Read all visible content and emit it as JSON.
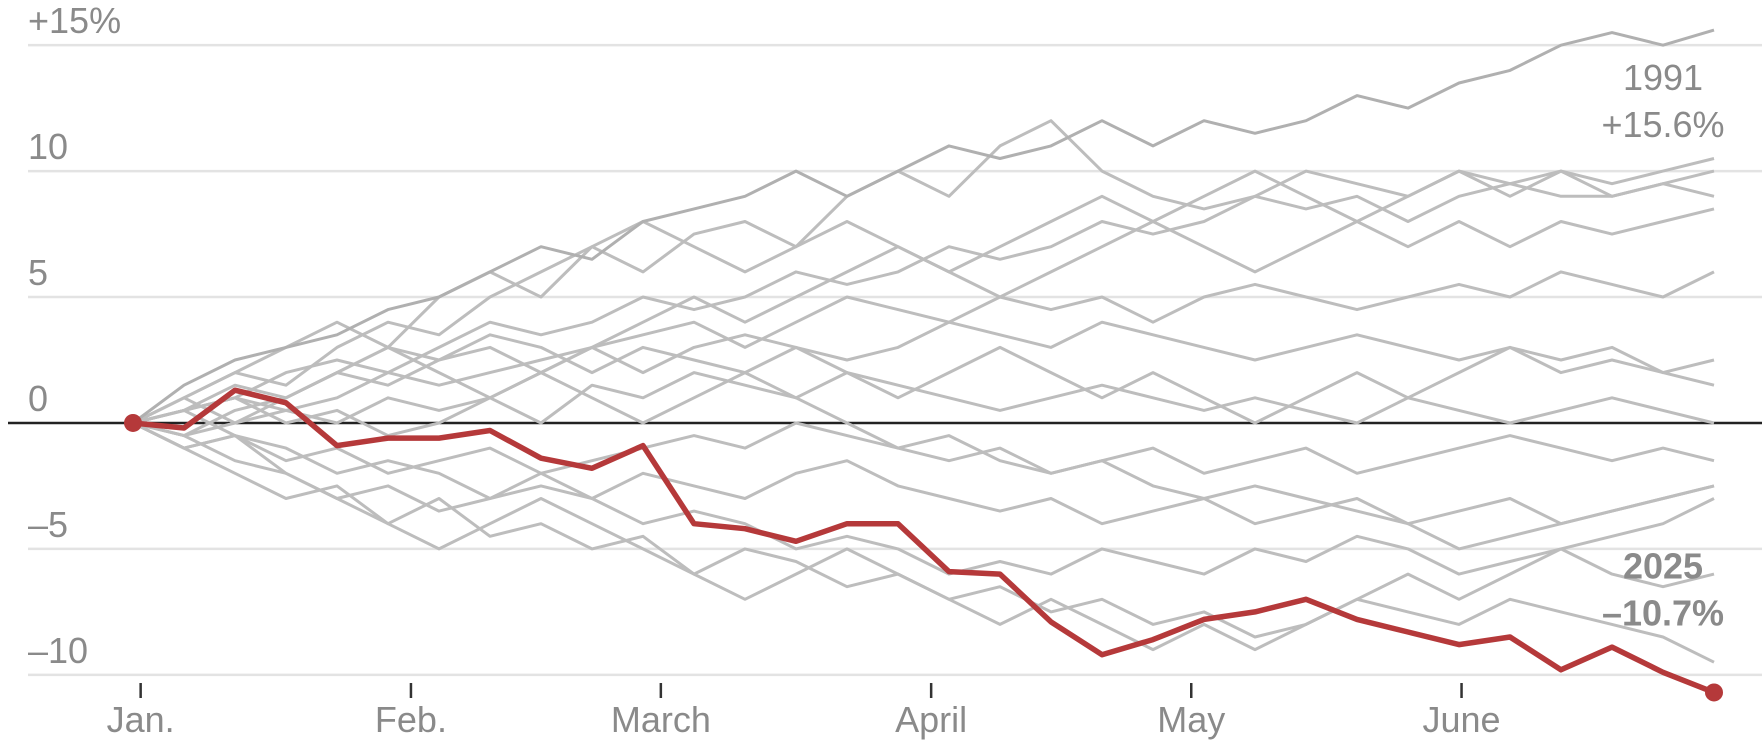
{
  "chart_data": {
    "type": "line",
    "x": [
      0,
      4,
      8,
      12,
      16,
      20,
      24,
      28,
      32,
      36,
      40,
      44,
      48,
      52,
      56,
      60,
      64,
      68,
      72,
      76,
      80,
      84,
      88,
      92,
      96,
      100,
      104,
      108,
      112,
      116,
      120,
      124
    ],
    "xlim": [
      0,
      124
    ],
    "xticks": [
      {
        "value": 0.6,
        "label": "Jan."
      },
      {
        "value": 21.8,
        "label": "Feb."
      },
      {
        "value": 41.4,
        "label": "March"
      },
      {
        "value": 62.6,
        "label": "April"
      },
      {
        "value": 83,
        "label": "May"
      },
      {
        "value": 104.2,
        "label": "June"
      }
    ],
    "ylim": [
      -11,
      16
    ],
    "yticks": [
      {
        "value": -10,
        "label": "–10"
      },
      {
        "value": -5,
        "label": "–5"
      },
      0,
      5,
      10,
      {
        "value": 15,
        "label": "+15%"
      }
    ],
    "grid": true,
    "series": [
      {
        "color": "#bdbdbd",
        "values": [
          0,
          1,
          2,
          1.5,
          3,
          4,
          3.5,
          5,
          6,
          7,
          6,
          7.5,
          8,
          7,
          9,
          10,
          9,
          11,
          12,
          10,
          9,
          8.5,
          9,
          10,
          9.5,
          9,
          10,
          9.5,
          10,
          9.5,
          10,
          10.5
        ]
      },
      {
        "color": "#bdbdbd",
        "values": [
          0,
          0.5,
          1,
          2,
          2.5,
          2,
          3,
          4,
          3.5,
          4,
          5,
          4.5,
          5,
          6,
          5.5,
          6,
          7,
          6.5,
          7,
          8,
          7.5,
          8,
          9,
          8.5,
          9,
          8,
          9,
          9.5,
          9,
          9,
          9.5,
          10
        ]
      },
      {
        "color": "#bdbdbd",
        "values": [
          0,
          -0.5,
          0.5,
          1,
          2,
          1.5,
          2.5,
          3,
          2,
          3,
          3.5,
          4,
          3,
          4,
          5,
          4.5,
          4,
          5,
          4.5,
          5,
          4,
          5,
          5.5,
          5,
          4.5,
          5,
          5.5,
          5,
          6,
          5.5,
          5,
          6
        ]
      },
      {
        "color": "#bdbdbd",
        "values": [
          0,
          0.5,
          1,
          0.5,
          1,
          2,
          1.5,
          2,
          2.5,
          3,
          2,
          3,
          3.5,
          3,
          2.5,
          3,
          4,
          3.5,
          3,
          4,
          3.5,
          3,
          2.5,
          3,
          3.5,
          3,
          2.5,
          3,
          2.5,
          3,
          2,
          2.5
        ]
      },
      {
        "color": "#bdbdbd",
        "values": [
          0,
          -0.5,
          0,
          0.5,
          0,
          1,
          0.5,
          1,
          0,
          1.5,
          1,
          2,
          1.5,
          1,
          2,
          1.5,
          1,
          0.5,
          1,
          1.5,
          1,
          0.5,
          1,
          0.5,
          0,
          1,
          0.5,
          0,
          0.5,
          1,
          0.5,
          0
        ]
      },
      {
        "color": "#bdbdbd",
        "values": [
          0,
          -1,
          -0.5,
          -1.5,
          -1,
          -2,
          -1.5,
          -1,
          -2,
          -1.5,
          -1,
          -0.5,
          -1,
          0,
          -0.5,
          -1,
          -1.5,
          -1,
          -2,
          -1.5,
          -1,
          -2,
          -1.5,
          -1,
          -2,
          -1.5,
          -1,
          -0.5,
          -1,
          -1.5,
          -1,
          -1.5
        ]
      },
      {
        "color": "#bdbdbd",
        "values": [
          0,
          -1,
          -2,
          -3,
          -2.5,
          -4,
          -3,
          -4.5,
          -4,
          -5,
          -4.5,
          -6,
          -5,
          -5.5,
          -6.5,
          -6,
          -7,
          -6.5,
          -7.5,
          -7,
          -8,
          -7.5,
          -8.5,
          -8,
          -7,
          -7.5,
          -8,
          -7,
          -7.5,
          -8,
          -8.5,
          -9.5
        ]
      },
      {
        "color": "#bdbdbd",
        "values": [
          0,
          -0.5,
          -1.5,
          -2,
          -3,
          -2.5,
          -3.5,
          -3,
          -2,
          -3,
          -4,
          -3.5,
          -4,
          -5,
          -4.5,
          -5,
          -6,
          -5.5,
          -6,
          -5,
          -5.5,
          -6,
          -5,
          -5.5,
          -4.5,
          -5,
          -6,
          -5.5,
          -5,
          -6,
          -6.5,
          -6
        ]
      },
      {
        "color": "#bdbdbd",
        "values": [
          0,
          0.5,
          -0.5,
          -1,
          -2,
          -1.5,
          -2,
          -3,
          -2.5,
          -3,
          -2,
          -2.5,
          -3,
          -2,
          -1.5,
          -2.5,
          -3,
          -3.5,
          -3,
          -4,
          -3.5,
          -3,
          -2.5,
          -3,
          -3.5,
          -4,
          -3.5,
          -3,
          -4,
          -3.5,
          -3,
          -2.5
        ]
      },
      {
        "color": "#bdbdbd",
        "values": [
          0,
          1,
          2,
          3,
          4,
          3,
          5,
          6,
          5,
          7,
          8,
          7,
          6,
          7,
          8,
          7,
          6,
          7,
          8,
          9,
          8,
          7,
          6,
          7,
          8,
          7,
          8,
          7,
          8,
          7.5,
          8,
          8.5
        ]
      },
      {
        "color": "#bdbdbd",
        "values": [
          0,
          0.5,
          1.5,
          1,
          2,
          3,
          2.5,
          3.5,
          3,
          2,
          3,
          2.5,
          2,
          1,
          0,
          -1,
          -0.5,
          -1.5,
          -2,
          -1.5,
          -2.5,
          -3,
          -4,
          -3.5,
          -3,
          -4,
          -5,
          -4.5,
          -4,
          -3.5,
          -3,
          -2.5
        ]
      },
      {
        "color": "#bdbdbd",
        "values": [
          0,
          -1,
          -0.5,
          -2,
          -3,
          -4,
          -5,
          -4,
          -3,
          -4,
          -5,
          -6,
          -7,
          -6,
          -5,
          -6,
          -7,
          -8,
          -7,
          -8,
          -9,
          -8,
          -9,
          -8,
          -7,
          -6,
          -7,
          -6,
          -5,
          -4.5,
          -4,
          -3
        ]
      },
      {
        "color": "#bdbdbd",
        "values": [
          0,
          1,
          0,
          1,
          2,
          3,
          2,
          1,
          2,
          3,
          4,
          5,
          4,
          5,
          6,
          7,
          6,
          5,
          6,
          7,
          8,
          9,
          10,
          9,
          8,
          9,
          10,
          9,
          10,
          9,
          9.5,
          9
        ]
      },
      {
        "color": "#bdbdbd",
        "values": [
          0,
          0.5,
          1,
          0,
          0.5,
          -0.5,
          0,
          1,
          2,
          1,
          0,
          1,
          2,
          3,
          2,
          1,
          2,
          3,
          2,
          1,
          2,
          1,
          0,
          1,
          2,
          1,
          2,
          3,
          2,
          2.5,
          2,
          1.5
        ]
      },
      {
        "name": "1991",
        "color": "#b0b0b0",
        "values": [
          0,
          1.5,
          2.5,
          3,
          3.5,
          4.5,
          5,
          6,
          7,
          6.5,
          8,
          8.5,
          9,
          10,
          9,
          10,
          11,
          10.5,
          11,
          12,
          11,
          12,
          11.5,
          12,
          13,
          12.5,
          13.5,
          14,
          15,
          15.5,
          15,
          15.6
        ],
        "value_labels": [
          null,
          null,
          null,
          null,
          null,
          null,
          null,
          null,
          null,
          null,
          null,
          null,
          null,
          null,
          null,
          null,
          null,
          null,
          null,
          null,
          null,
          null,
          null,
          null,
          null,
          null,
          null,
          null,
          null,
          null,
          null,
          "+15.6%"
        ]
      },
      {
        "name": "2025",
        "color": "#b5393a",
        "values": [
          0,
          -0.2,
          1.3,
          0.8,
          -0.9,
          -0.6,
          -0.6,
          -0.3,
          -1.4,
          -1.8,
          -0.9,
          -4,
          -4.2,
          -4.7,
          -4,
          -4,
          -5.9,
          -6,
          -7.9,
          -9.2,
          -8.6,
          -7.8,
          -7.5,
          -7,
          -7.8,
          -8.3,
          -8.8,
          -8.5,
          -9.8,
          -8.9,
          -9.9,
          -10.7
        ],
        "value_labels": [
          null,
          null,
          null,
          null,
          null,
          null,
          null,
          null,
          null,
          null,
          null,
          null,
          null,
          null,
          null,
          null,
          null,
          null,
          null,
          null,
          null,
          null,
          null,
          null,
          null,
          null,
          null,
          null,
          null,
          null,
          null,
          "–10.7%"
        ]
      }
    ]
  }
}
